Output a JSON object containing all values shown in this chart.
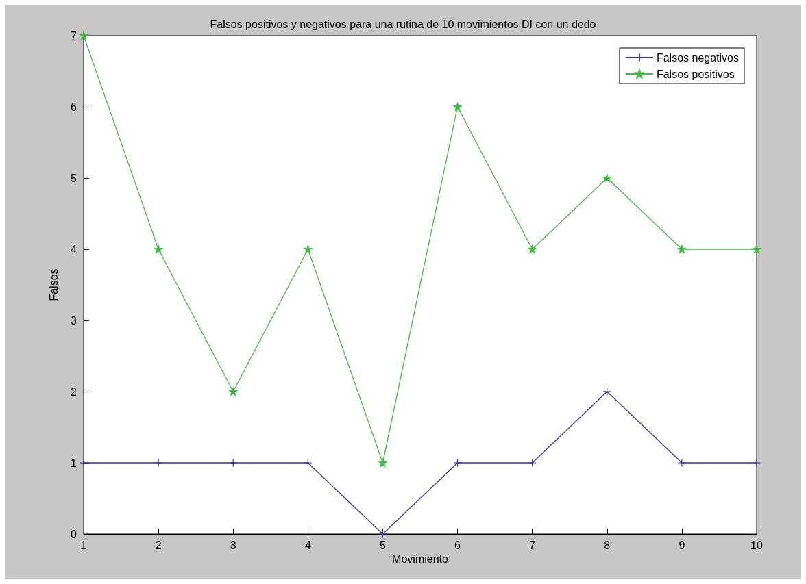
{
  "chart_data": {
    "type": "line",
    "title": "Falsos positivos y negativos para una rutina de 10 movimientos DI con un dedo",
    "xlabel": "Movimiento",
    "ylabel": "Falsos",
    "x": [
      1,
      2,
      3,
      4,
      5,
      6,
      7,
      8,
      9,
      10
    ],
    "series": [
      {
        "name": "Falsos negativos",
        "color": "#3333aa",
        "marker": "cross",
        "values": [
          1,
          1,
          1,
          1,
          0,
          1,
          1,
          2,
          1,
          1
        ]
      },
      {
        "name": "Falsos positivos",
        "color": "#44bb44",
        "marker": "star",
        "values": [
          7,
          4,
          2,
          4,
          1,
          6,
          4,
          5,
          4,
          4
        ]
      }
    ],
    "xlim": [
      1,
      10
    ],
    "xticks": [
      1,
      2,
      3,
      4,
      5,
      6,
      7,
      8,
      9,
      10
    ],
    "ylim": [
      0,
      7
    ],
    "yticks": [
      0,
      1,
      2,
      3,
      4,
      5,
      6,
      7
    ],
    "grid": false,
    "legend": "top right",
    "line_style": "solid"
  }
}
